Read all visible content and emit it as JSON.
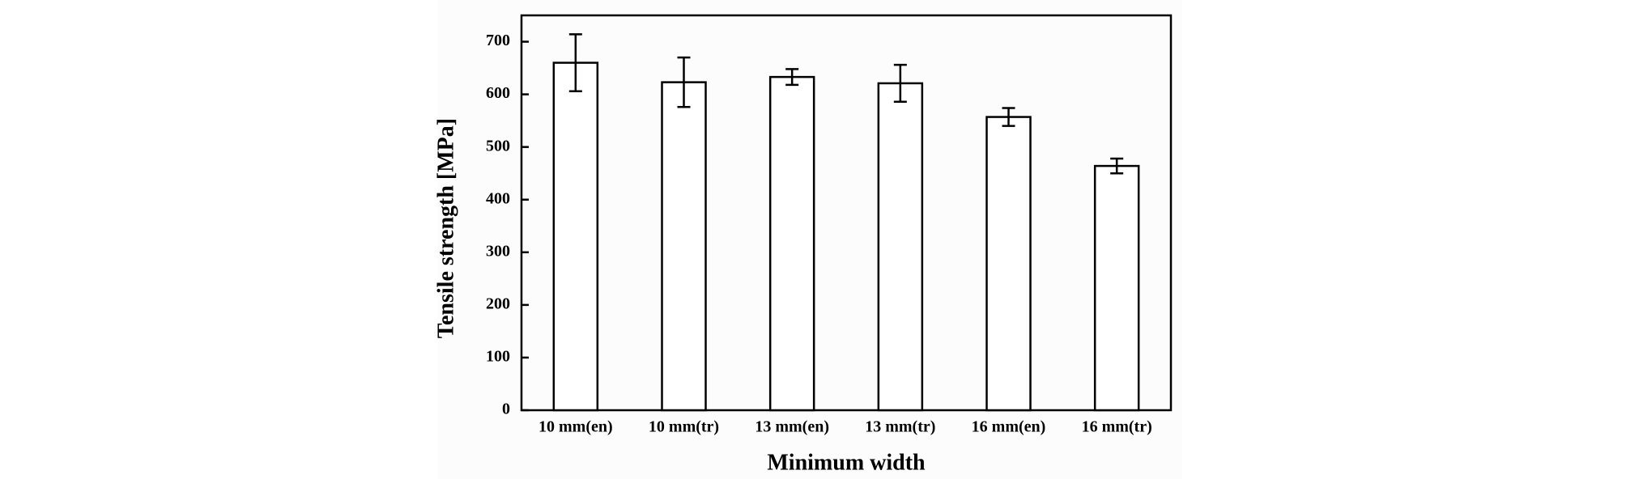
{
  "chart_data": {
    "type": "bar",
    "xlabel": "Minimum width",
    "ylabel": "Tensile strength [MPa]",
    "categories": [
      "10 mm(en)",
      "10 mm(tr)",
      "13 mm(en)",
      "13 mm(tr)",
      "16 mm(en)",
      "16 mm(tr)"
    ],
    "values": [
      660,
      623,
      633,
      621,
      557,
      464
    ],
    "errors": [
      54,
      47,
      15,
      35,
      17,
      14
    ],
    "color": "#ffffff",
    "ylim": [
      0,
      750
    ],
    "yticks": [
      0,
      100,
      200,
      300,
      400,
      500,
      600,
      700
    ],
    "grid": false
  }
}
